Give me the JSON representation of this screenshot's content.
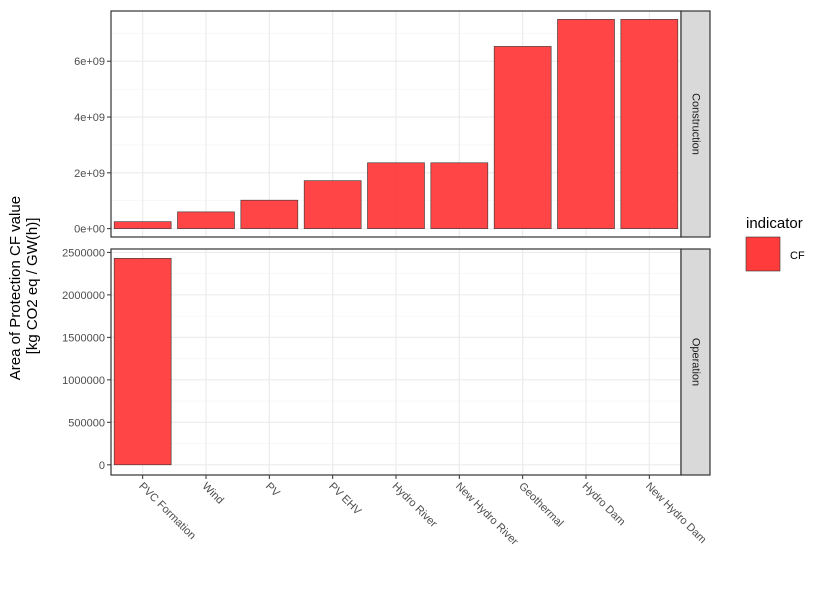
{
  "chart_data": {
    "type": "bar",
    "categories": [
      "PVC Formation",
      "Wind",
      "PV",
      "PV EHV",
      "Hydro River",
      "New Hydro River",
      "Geothermal",
      "Hydro Dam",
      "New Hydro Dam"
    ],
    "ylabel_line1": "Area of Protection CF value",
    "ylabel_line2": "[kg CO2 eq / GW(h)]",
    "facets": [
      {
        "name": "Construction",
        "values": [
          250000000,
          600000000,
          1020000000,
          1720000000,
          2360000000,
          2360000000,
          6530000000,
          7500000000,
          7500000000
        ],
        "ylim": [
          -300000000,
          7800000000
        ],
        "ticks": [
          0,
          2000000000,
          4000000000,
          6000000000
        ],
        "tick_labels": [
          "0e+00",
          "2e+09",
          "4e+09",
          "6e+09"
        ]
      },
      {
        "name": "Operation",
        "values": [
          2430000,
          0,
          0,
          0,
          0,
          0,
          0,
          0,
          0
        ],
        "ylim": [
          -120000,
          2540000
        ],
        "ticks": [
          0,
          500000,
          1000000,
          1500000,
          2000000,
          2500000
        ],
        "tick_labels": [
          "0",
          "500000",
          "1000000",
          "1500000",
          "2000000",
          "2500000"
        ]
      }
    ],
    "legend": {
      "title": "indicator",
      "entries": [
        "CF"
      ],
      "position": "right"
    },
    "grid": true,
    "colors": {
      "bar_fill": "#FF3B3B",
      "bar_stroke": "#333333",
      "strip_fill": "#D9D9D9",
      "grid": "#EBEBEB"
    }
  }
}
